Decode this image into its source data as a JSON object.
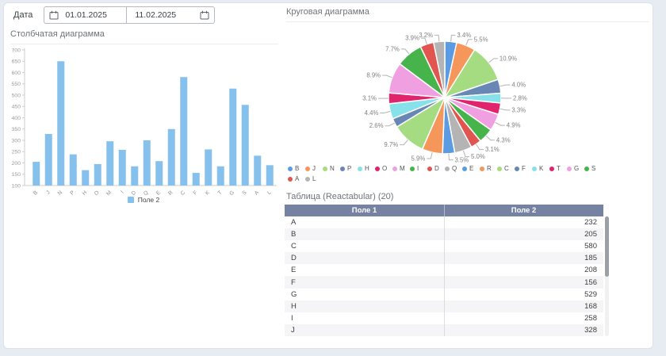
{
  "toolbar": {
    "date_label": "Дата",
    "date_from": "01.01.2025",
    "date_to": "11.02.2025"
  },
  "bar_panel": {
    "title": "Столбчатая диаграмма",
    "legend": "Поле 2"
  },
  "pie_panel": {
    "title": "Круговая диаграмма"
  },
  "table_panel": {
    "title": "Таблица (Reactabular) (20)",
    "columns": [
      "Поле 1",
      "Поле 2"
    ],
    "rows": [
      [
        "A",
        232
      ],
      [
        "B",
        205
      ],
      [
        "C",
        580
      ],
      [
        "D",
        185
      ],
      [
        "E",
        208
      ],
      [
        "F",
        156
      ],
      [
        "G",
        529
      ],
      [
        "H",
        168
      ],
      [
        "I",
        258
      ],
      [
        "J",
        328
      ]
    ]
  },
  "icons": {
    "calendar": "calendar-icon"
  },
  "colors": {
    "bar_fill": "#85c1ec",
    "table_header_bg": "#7682a2",
    "card_bg": "#ffffff",
    "page_bg": "#e7ebf2"
  },
  "chart_data": [
    {
      "type": "bar",
      "title": "Столбчатая диаграмма",
      "series_name": "Поле 2",
      "categories": [
        "B",
        "J",
        "N",
        "P",
        "H",
        "O",
        "M",
        "I",
        "D",
        "Q",
        "E",
        "R",
        "C",
        "F",
        "K",
        "T",
        "G",
        "S",
        "A",
        "L"
      ],
      "values": [
        205,
        328,
        650,
        238,
        168,
        195,
        296,
        258,
        185,
        300,
        208,
        350,
        580,
        156,
        260,
        185,
        529,
        457,
        232,
        190
      ],
      "ylim": [
        100,
        700
      ],
      "ytick_step": 50,
      "grid": false,
      "legend_position": "bottom",
      "bar_color": "#85c1ec"
    },
    {
      "type": "pie",
      "title": "Круговая диаграмма",
      "labels": [
        "B",
        "J",
        "N",
        "P",
        "H",
        "O",
        "M",
        "I",
        "D",
        "Q",
        "E",
        "R",
        "C",
        "F",
        "K",
        "T",
        "G",
        "S",
        "A",
        "L"
      ],
      "values_pct": [
        3.4,
        5.5,
        10.9,
        4.0,
        2.8,
        3.3,
        4.9,
        4.3,
        3.1,
        5.0,
        3.5,
        5.9,
        9.7,
        2.6,
        4.4,
        3.1,
        8.9,
        7.7,
        3.9,
        3.2
      ],
      "colors": [
        "#5a9be1",
        "#f5965a",
        "#a5dc82",
        "#6987b4",
        "#87e1eb",
        "#e1236e",
        "#f0a0e1",
        "#46b44b",
        "#e15550",
        "#b4b4b4",
        "#5a9be1",
        "#f5965a",
        "#a5dc82",
        "#6987b4",
        "#87e1eb",
        "#e1236e",
        "#f0a0e1",
        "#46b44b",
        "#e15550",
        "#b4b4b4"
      ],
      "start_angle": "top",
      "direction": "clockwise",
      "legend_position": "bottom"
    }
  ]
}
